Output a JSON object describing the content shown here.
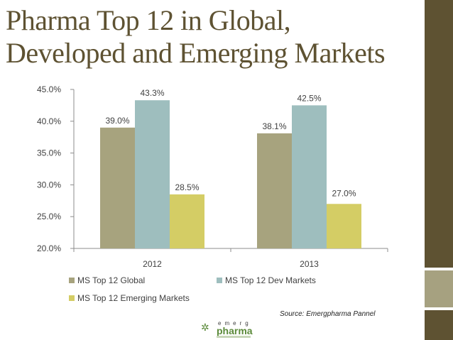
{
  "slide": {
    "title_line1": "Pharma Top 12 in Global,",
    "title_line2": "Developed and Emerging Markets",
    "source": "Source: Emergpharma Pannel",
    "logo_top": "emerg",
    "logo_main": "pharma"
  },
  "colors": {
    "title": "#5e5232",
    "deco_dark": "#5e5232",
    "deco_light": "#a6a180",
    "axis": "#8c8c8c",
    "text": "#404040"
  },
  "chart_data": {
    "type": "bar",
    "title": "",
    "xlabel": "",
    "ylabel": "",
    "categories": [
      "2012",
      "2013"
    ],
    "series": [
      {
        "name": "MS Top 12 Global",
        "values": [
          39.0,
          38.1
        ],
        "labels": [
          "39.0%",
          "38.1%"
        ],
        "color": "#a7a37e"
      },
      {
        "name": "MS Top 12 Dev Markets",
        "values": [
          43.3,
          42.5
        ],
        "labels": [
          "43.3%",
          "42.5%"
        ],
        "color": "#9ebebe"
      },
      {
        "name": "MS Top 12 Emerging Markets",
        "values": [
          28.5,
          27.0
        ],
        "labels": [
          "28.5%",
          "27.0%"
        ],
        "color": "#d4cd65"
      }
    ],
    "ylim": [
      20,
      45
    ],
    "yticks": [
      20,
      25,
      30,
      35,
      40,
      45
    ],
    "ytick_labels": [
      "20.0%",
      "25.0%",
      "30.0%",
      "35.0%",
      "40.0%",
      "45.0%"
    ],
    "grid": false,
    "legend_position": "bottom"
  }
}
